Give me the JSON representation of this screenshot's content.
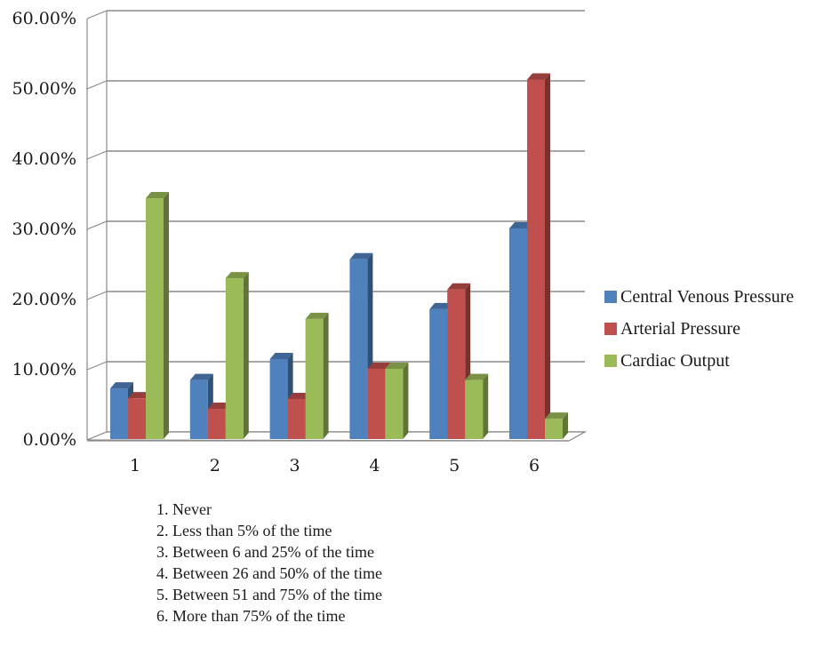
{
  "chart_data": {
    "type": "bar",
    "title": "",
    "xlabel": "",
    "ylabel": "",
    "categories": [
      "1",
      "2",
      "3",
      "4",
      "5",
      "6"
    ],
    "y_ticks": [
      "0.00%",
      "10.00%",
      "20.00%",
      "30.00%",
      "40.00%",
      "50.00%",
      "60.00%"
    ],
    "ylim": [
      0,
      60
    ],
    "grid": "horizontal",
    "legend_position": "right",
    "series": [
      {
        "name": "Central Venous Pressure",
        "color": "#4f81bd",
        "values": [
          7.2,
          8.4,
          11.4,
          25.6,
          18.5,
          30.0
        ]
      },
      {
        "name": "Arterial Pressure",
        "color": "#c0504d",
        "values": [
          5.8,
          4.3,
          5.7,
          10.0,
          21.3,
          51.2
        ]
      },
      {
        "name": "Cardiac Output",
        "color": "#9bbb59",
        "values": [
          34.3,
          22.9,
          17.1,
          10.0,
          8.4,
          2.9
        ]
      }
    ]
  },
  "notes": [
    "1. Never",
    "2. Less than 5% of the time",
    "3. Between 6 and 25% of the time",
    "4. Between 26 and 50% of the time",
    "5. Between 51 and 75% of the time",
    "6. More than 75% of the time"
  ]
}
